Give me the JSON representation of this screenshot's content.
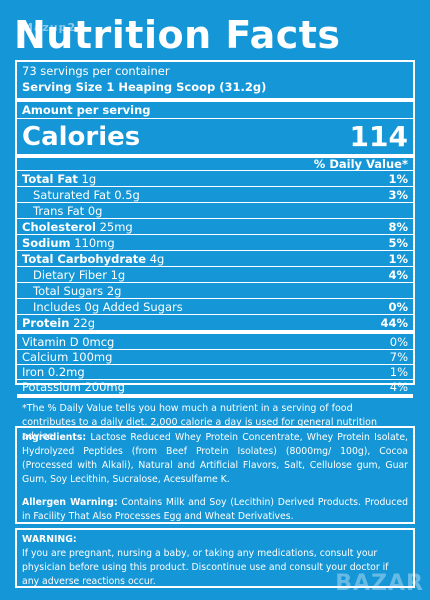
{
  "watermark_top": "Mazup2",
  "title": "Nutrition Facts",
  "servings_per_container": "73 servings per container",
  "serving_size": "Serving Size  1 Heaping Scoop (31.2g)",
  "amount_per_serving": "Amount per serving",
  "calories_label": "Calories",
  "calories_value": "114",
  "dv_header": "% Daily Value*",
  "nutrients": [
    {
      "name": "Total Fat",
      "amount": "1g",
      "dv": "1%",
      "bold": true,
      "indent": false
    },
    {
      "name": "Saturated Fat",
      "amount": "0.5g",
      "dv": "3%",
      "bold": false,
      "indent": true
    },
    {
      "name": "Trans Fat",
      "amount": "0g",
      "dv": "",
      "bold": false,
      "indent": true
    },
    {
      "name": "Cholesterol",
      "amount": "25mg",
      "dv": "8%",
      "bold": true,
      "indent": false
    },
    {
      "name": "Sodium",
      "amount": "110mg",
      "dv": "5%",
      "bold": true,
      "indent": false
    },
    {
      "name": "Total Carbohydrate",
      "amount": "4g",
      "dv": "1%",
      "bold": true,
      "indent": false
    },
    {
      "name": "Dietary Fiber",
      "amount": "1g",
      "dv": "4%",
      "bold": false,
      "indent": true
    },
    {
      "name": "Total Sugars",
      "amount": "2g",
      "dv": "",
      "bold": false,
      "indent": true
    },
    {
      "name": "Includes 0g Added Sugars",
      "amount": "",
      "dv": "0%",
      "bold": false,
      "indent": true
    },
    {
      "name": "Protein",
      "amount": "22g",
      "dv": "44%",
      "bold": true,
      "indent": false
    }
  ],
  "vitamins": [
    {
      "name": "Vitamin D",
      "amount": "0mcg",
      "dv": "0%"
    },
    {
      "name": "Calcium",
      "amount": "100mg",
      "dv": "7%"
    },
    {
      "name": "Iron",
      "amount": "0.2mg",
      "dv": "1%"
    },
    {
      "name": "Potassium",
      "amount": "200mg",
      "dv": "4%"
    }
  ],
  "footnote": "*The % Daily Value tells you how much a nutrient in a serving of food contributes to a daily diet. 2,000 calorie a day is used for general nutrition advice.",
  "ingredients_label": "Ingredients:",
  "ingredients_text": "Lactose Reduced Whey Protein Concentrate, Whey Protein Isolate, Hydrolyzed Peptides (from Beef Protein Isolates) (8000mg/ 100g), Cocoa (Processed with Alkali), Natural and Artificial Flavors, Salt, Cellulose gum, Guar Gum, Soy Lecithin, Sucralose, Acesulfame K.",
  "allergen_label": "Allergen Warning:",
  "allergen_text": "Contains Milk and Soy (Lecithin) Derived Products. Produced in Facility That Also Processes Egg and Wheat Derivatives.",
  "warning_label": "WARNING:",
  "warning_text": "If you are pregnant, nursing a baby, or taking any medications, consult your physician before using this product. Discontinue use and consult your doctor if any adverse reactions occur.",
  "watermark_bottom": "BAZAR"
}
